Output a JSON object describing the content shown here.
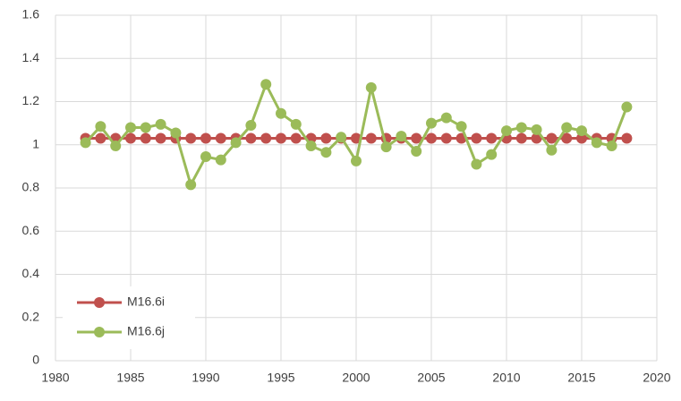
{
  "chart_data": {
    "type": "line",
    "x": [
      1982,
      1983,
      1984,
      1985,
      1986,
      1987,
      1988,
      1989,
      1990,
      1991,
      1992,
      1993,
      1994,
      1995,
      1996,
      1997,
      1998,
      1999,
      2000,
      2001,
      2002,
      2003,
      2004,
      2005,
      2006,
      2007,
      2008,
      2009,
      2010,
      2011,
      2012,
      2013,
      2014,
      2015,
      2016,
      2017,
      2018
    ],
    "series": [
      {
        "name": "M16.6i",
        "color": "#c0504d",
        "values": [
          1.03,
          1.03,
          1.03,
          1.03,
          1.03,
          1.03,
          1.03,
          1.03,
          1.03,
          1.03,
          1.03,
          1.03,
          1.03,
          1.03,
          1.03,
          1.03,
          1.03,
          1.03,
          1.03,
          1.03,
          1.03,
          1.03,
          1.03,
          1.03,
          1.03,
          1.03,
          1.03,
          1.03,
          1.03,
          1.03,
          1.03,
          1.03,
          1.03,
          1.03,
          1.03,
          1.03,
          1.03
        ]
      },
      {
        "name": "M16.6j",
        "color": "#9bbb59",
        "values": [
          1.01,
          1.085,
          0.995,
          1.08,
          1.08,
          1.095,
          1.055,
          0.815,
          0.945,
          0.93,
          1.01,
          1.09,
          1.28,
          1.145,
          1.095,
          0.995,
          0.965,
          1.035,
          0.925,
          1.265,
          0.99,
          1.04,
          0.97,
          1.1,
          1.125,
          1.085,
          0.91,
          0.955,
          1.065,
          1.08,
          1.07,
          0.975,
          1.08,
          1.065,
          1.01,
          0.995,
          1.175
        ]
      }
    ],
    "xlim": [
      1980,
      2020
    ],
    "xticks": [
      1980,
      1985,
      1990,
      1995,
      2000,
      2005,
      2010,
      2015,
      2020
    ],
    "ylim": [
      0,
      1.6
    ],
    "yticks": [
      0,
      0.2,
      0.4,
      0.6,
      0.8,
      1,
      1.2,
      1.4,
      1.6
    ],
    "grid": true,
    "legend": "lower left"
  }
}
